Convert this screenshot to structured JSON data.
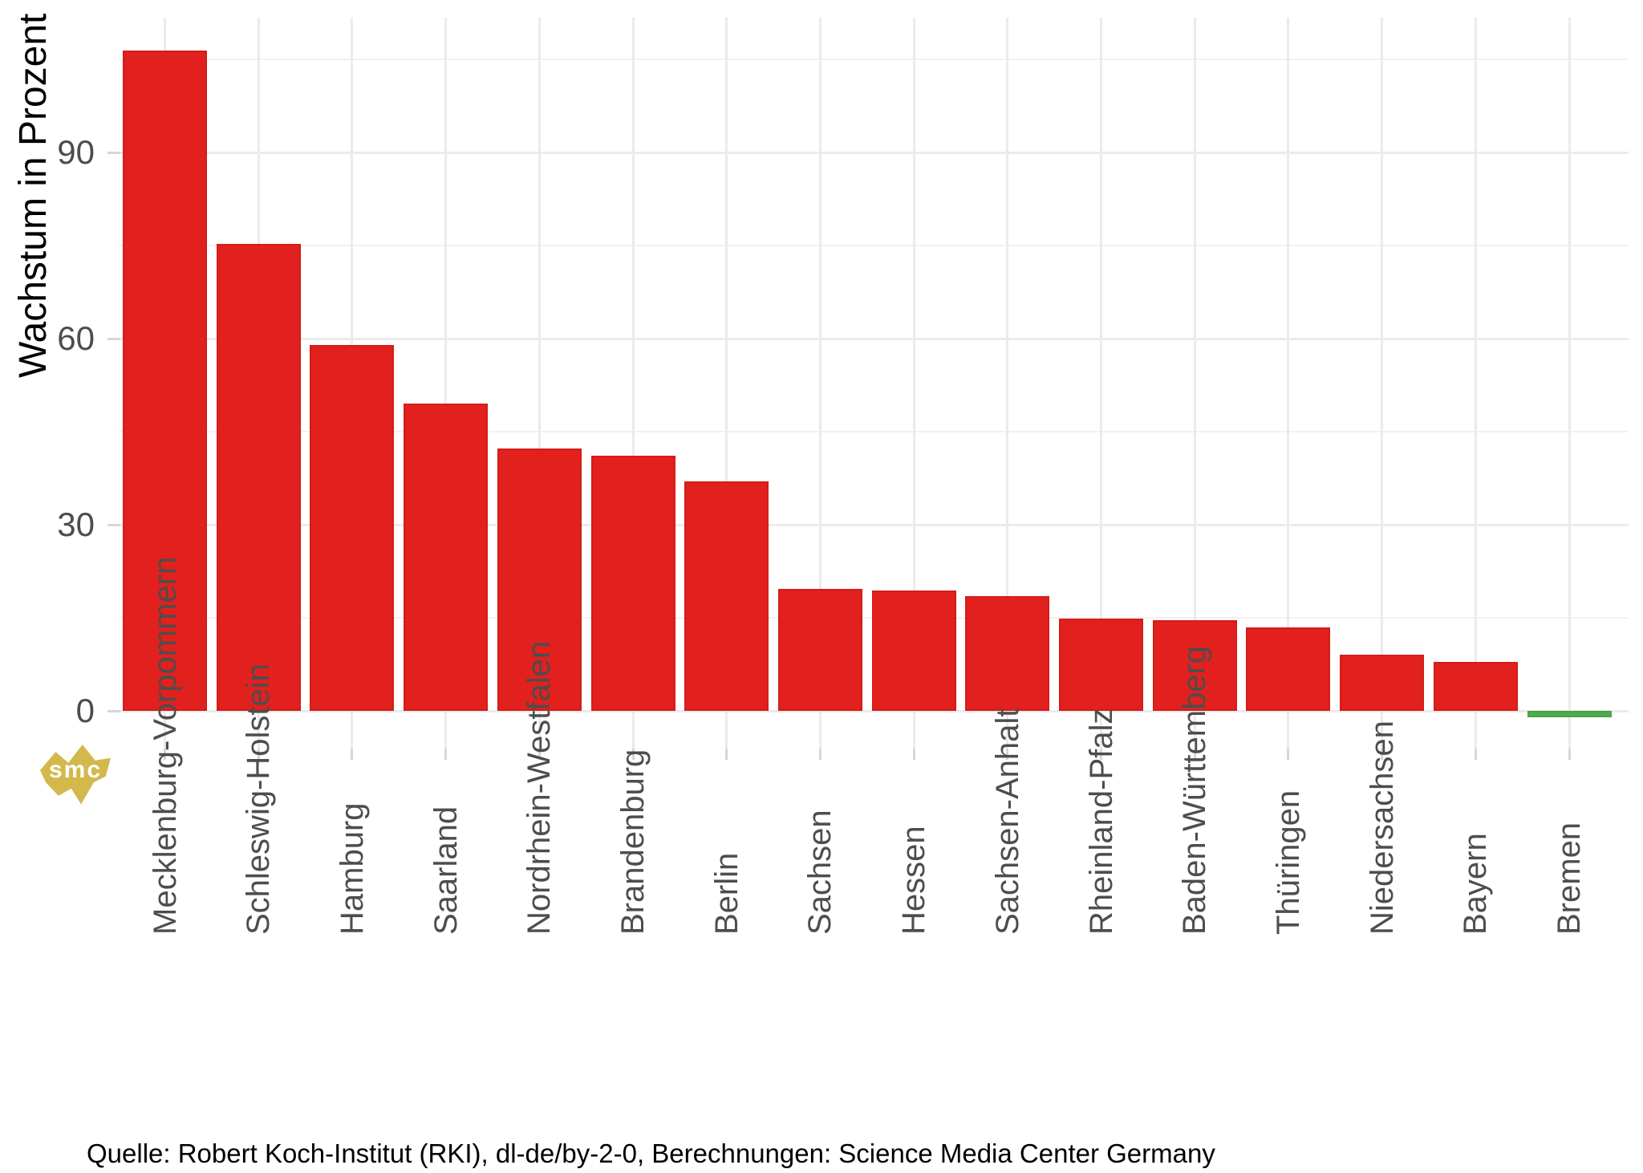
{
  "chart_data": {
    "type": "bar",
    "title": "",
    "xlabel": "",
    "ylabel": "Wachstum in Prozent",
    "caption": "Quelle: Robert Koch-Institut (RKI), dl-de/by-2-0, Berechnungen: Science Media Center Germany",
    "categories": [
      "Mecklenburg-Vorpommern",
      "Schleswig-Holstein",
      "Hamburg",
      "Saarland",
      "Nordrhein-Westfalen",
      "Brandenburg",
      "Berlin",
      "Sachsen",
      "Hessen",
      "Sachsen-Anhalt",
      "Rheinland-Pfalz",
      "Baden-Württemberg",
      "Thüringen",
      "Niedersachsen",
      "Bayern",
      "Bremen"
    ],
    "values": [
      106.5,
      75.3,
      59.0,
      49.5,
      42.3,
      41.1,
      37.0,
      19.7,
      19.4,
      18.5,
      14.9,
      14.6,
      13.4,
      9.1,
      7.9,
      -1.0
    ],
    "bar_colors": [
      "#e2201d",
      "#e2201d",
      "#e2201d",
      "#e2201d",
      "#e2201d",
      "#e2201d",
      "#e2201d",
      "#e2201d",
      "#e2201d",
      "#e2201d",
      "#e2201d",
      "#e2201d",
      "#e2201d",
      "#e2201d",
      "#e2201d",
      "#4dae4b"
    ],
    "yticks": [
      0,
      30,
      60,
      90
    ],
    "minor_yticks": [
      15,
      45,
      75,
      105
    ],
    "ylim": [
      -6.4,
      111.8
    ],
    "grid": true,
    "legend": "none"
  },
  "colors": {
    "bar_positive": "#e2201d",
    "bar_negative": "#4dae4b",
    "grid_major": "#ebebeb",
    "grid_minor": "#f1f1f1",
    "tick_mark": "#d6d6d6",
    "axis_text": "#4d4d4d",
    "axis_title": "#000000",
    "background": "#ffffff",
    "watermark_gold": "#d3b94c"
  },
  "watermark": {
    "text": "smc"
  }
}
